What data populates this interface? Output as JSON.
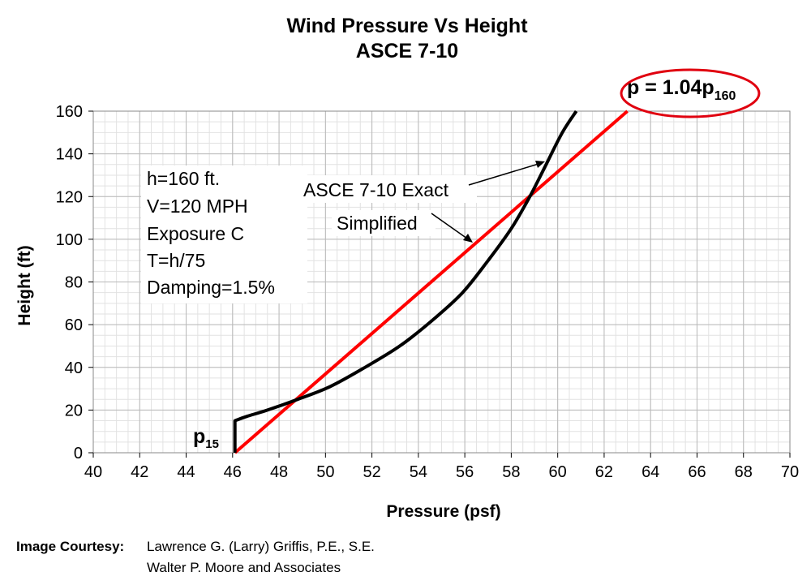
{
  "chart_data": {
    "type": "line",
    "title": "Wind Pressure Vs Height",
    "subtitle": "ASCE 7-10",
    "xlabel": "Pressure (psf)",
    "ylabel": "Height (ft)",
    "xlim": [
      40,
      70
    ],
    "ylim": [
      0,
      160
    ],
    "x_ticks": [
      "40",
      "42",
      "44",
      "46",
      "48",
      "50",
      "52",
      "54",
      "56",
      "58",
      "60",
      "62",
      "64",
      "66",
      "68",
      "70"
    ],
    "y_ticks": [
      "0",
      "20",
      "40",
      "60",
      "80",
      "100",
      "120",
      "140",
      "160"
    ],
    "grid": true,
    "series": [
      {
        "name": "ASCE 7-10 Exact",
        "color": "#000000",
        "points": [
          [
            46.1,
            0
          ],
          [
            46.1,
            15
          ],
          [
            46.6,
            17
          ],
          [
            47.5,
            20
          ],
          [
            48.8,
            25
          ],
          [
            50.2,
            31
          ],
          [
            51.7,
            40
          ],
          [
            53.2,
            50
          ],
          [
            54.6,
            62
          ],
          [
            55.9,
            75
          ],
          [
            57.0,
            90
          ],
          [
            58.0,
            105
          ],
          [
            58.8,
            120
          ],
          [
            59.5,
            135
          ],
          [
            60.2,
            150
          ],
          [
            60.8,
            160
          ]
        ]
      },
      {
        "name": "Simplified",
        "color": "#ff0000",
        "points": [
          [
            46.1,
            0
          ],
          [
            63.0,
            160
          ]
        ]
      }
    ],
    "annotations": {
      "info_lines": [
        "h=160 ft.",
        "V=120 MPH",
        "Exposure C",
        "T=h/75",
        "Damping=1.5%"
      ],
      "exact_label": "ASCE 7-10 Exact",
      "simplified_label": "Simplified",
      "p15_label": "p",
      "p15_sub": "15",
      "formula_label": "p = 1.04p",
      "formula_sub": "160",
      "formula_ring_color": "#e0000f"
    }
  },
  "credit": {
    "label": "Image Courtesy:",
    "line1": "Lawrence G. (Larry) Griffis, P.E., S.E.",
    "line2": "Walter P. Moore and Associates"
  }
}
